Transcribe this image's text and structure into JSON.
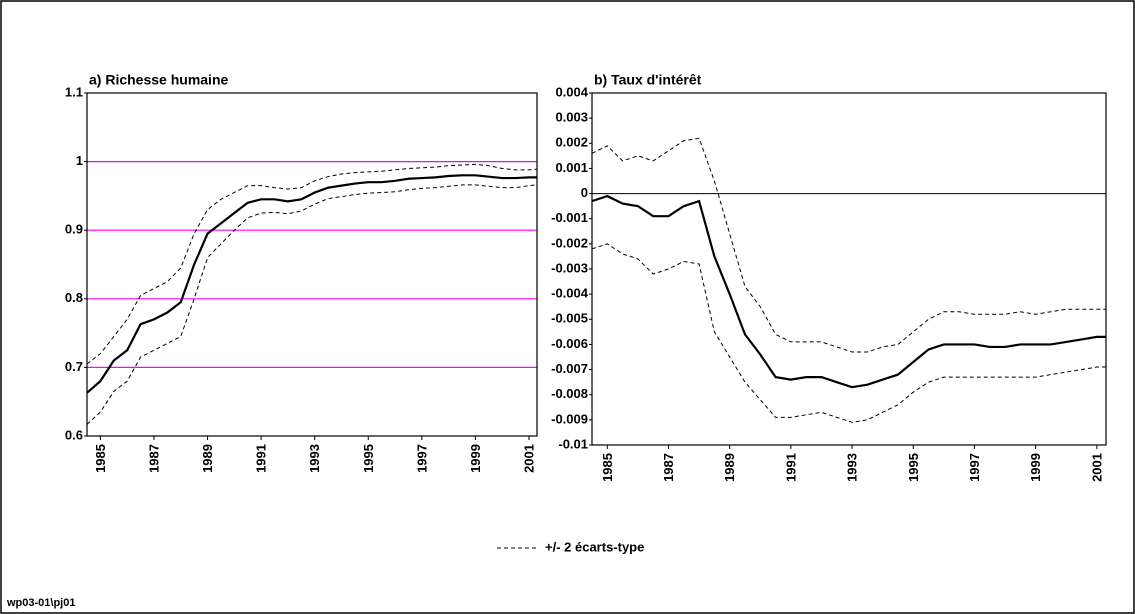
{
  "chart_data": [
    {
      "type": "line",
      "title": "a) Richesse humaine",
      "x": [
        1984.5,
        1985,
        1985.5,
        1986,
        1986.5,
        1987,
        1987.5,
        1988,
        1988.5,
        1989,
        1989.5,
        1990,
        1990.5,
        1991,
        1991.5,
        1992,
        1992.5,
        1993,
        1993.5,
        1994,
        1994.5,
        1995,
        1995.5,
        1996,
        1996.5,
        1997,
        1997.5,
        1998,
        1998.5,
        1999,
        1999.5,
        2000,
        2000.5,
        2001,
        2001.3
      ],
      "xlim": [
        1984.5,
        2001.3
      ],
      "xticks": [
        1985,
        1987,
        1989,
        1991,
        1993,
        1995,
        1997,
        1999,
        2001
      ],
      "ylim": [
        0.6,
        1.1
      ],
      "yticks": [
        0.6,
        0.7,
        0.8,
        0.9,
        1,
        1.1
      ],
      "grid": true,
      "grid_color": "#ff00ff",
      "series": [
        {
          "color": "#000000",
          "dash": "solid",
          "values": [
            0.663,
            0.68,
            0.71,
            0.725,
            0.763,
            0.77,
            0.78,
            0.795,
            0.85,
            0.895,
            0.91,
            0.925,
            0.94,
            0.945,
            0.945,
            0.942,
            0.945,
            0.955,
            0.962,
            0.965,
            0.968,
            0.97,
            0.97,
            0.972,
            0.975,
            0.976,
            0.977,
            0.979,
            0.98,
            0.98,
            0.978,
            0.976,
            0.976,
            0.977,
            0.977
          ]
        },
        {
          "name": "+/- 2 écarts-type",
          "color": "#000000",
          "dash": "dashed",
          "values": [
            0.705,
            0.72,
            0.745,
            0.77,
            0.805,
            0.815,
            0.825,
            0.845,
            0.895,
            0.93,
            0.945,
            0.955,
            0.965,
            0.965,
            0.962,
            0.96,
            0.962,
            0.972,
            0.978,
            0.982,
            0.984,
            0.985,
            0.986,
            0.988,
            0.99,
            0.991,
            0.992,
            0.994,
            0.995,
            0.996,
            0.994,
            0.99,
            0.988,
            0.988,
            0.989
          ]
        },
        {
          "color": "#000000",
          "dash": "dashed",
          "values": [
            0.617,
            0.635,
            0.665,
            0.68,
            0.715,
            0.725,
            0.735,
            0.745,
            0.8,
            0.86,
            0.88,
            0.9,
            0.918,
            0.925,
            0.926,
            0.924,
            0.928,
            0.938,
            0.946,
            0.949,
            0.952,
            0.954,
            0.955,
            0.956,
            0.959,
            0.961,
            0.962,
            0.964,
            0.966,
            0.966,
            0.964,
            0.962,
            0.962,
            0.965,
            0.966
          ]
        }
      ]
    },
    {
      "type": "line",
      "title": "b) Taux d'intérêt",
      "x": [
        1984.5,
        1985,
        1985.5,
        1986,
        1986.5,
        1987,
        1987.5,
        1988,
        1988.5,
        1989,
        1989.5,
        1990,
        1990.5,
        1991,
        1991.5,
        1992,
        1992.5,
        1993,
        1993.5,
        1994,
        1994.5,
        1995,
        1995.5,
        1996,
        1996.5,
        1997,
        1997.5,
        1998,
        1998.5,
        1999,
        1999.5,
        2000,
        2000.5,
        2001,
        2001.3
      ],
      "xlim": [
        1984.5,
        2001.3
      ],
      "xticks": [
        1985,
        1987,
        1989,
        1991,
        1993,
        1995,
        1997,
        1999,
        2001
      ],
      "ylim": [
        -0.01,
        0.004
      ],
      "yticks": [
        -0.01,
        -0.009,
        -0.008,
        -0.007,
        -0.006,
        -0.005,
        -0.004,
        -0.003,
        -0.002,
        -0.001,
        0,
        0.001,
        0.002,
        0.003,
        0.004
      ],
      "zero_line": true,
      "series": [
        {
          "color": "#000000",
          "dash": "solid",
          "values": [
            -0.0003,
            -0.0001,
            -0.0004,
            -0.0005,
            -0.0009,
            -0.0009,
            -0.0005,
            -0.0003,
            -0.0025,
            -0.004,
            -0.0056,
            -0.0064,
            -0.0073,
            -0.0074,
            -0.0073,
            -0.0073,
            -0.0075,
            -0.0077,
            -0.0076,
            -0.0074,
            -0.0072,
            -0.0067,
            -0.0062,
            -0.006,
            -0.006,
            -0.006,
            -0.0061,
            -0.0061,
            -0.006,
            -0.006,
            -0.006,
            -0.0059,
            -0.0058,
            -0.0057,
            -0.0057
          ]
        },
        {
          "color": "#000000",
          "dash": "dashed",
          "values": [
            0.0016,
            0.0019,
            0.0013,
            0.0015,
            0.0013,
            0.0017,
            0.0021,
            0.0022,
            0.0005,
            -0.0016,
            -0.0037,
            -0.0045,
            -0.0056,
            -0.0059,
            -0.0059,
            -0.0059,
            -0.0061,
            -0.0063,
            -0.0063,
            -0.0061,
            -0.006,
            -0.0055,
            -0.005,
            -0.0047,
            -0.0047,
            -0.0048,
            -0.0048,
            -0.0048,
            -0.0047,
            -0.0048,
            -0.0047,
            -0.0046,
            -0.0046,
            -0.0046,
            -0.0046
          ]
        },
        {
          "color": "#000000",
          "dash": "dashed",
          "values": [
            -0.0022,
            -0.002,
            -0.0024,
            -0.0026,
            -0.0032,
            -0.003,
            -0.0027,
            -0.0028,
            -0.0055,
            -0.0065,
            -0.0075,
            -0.0082,
            -0.0089,
            -0.0089,
            -0.0088,
            -0.0087,
            -0.0089,
            -0.0091,
            -0.009,
            -0.0087,
            -0.0084,
            -0.0079,
            -0.0075,
            -0.0073,
            -0.0073,
            -0.0073,
            -0.0073,
            -0.0073,
            -0.0073,
            -0.0073,
            -0.0072,
            -0.0071,
            -0.007,
            -0.0069,
            -0.0069
          ]
        }
      ]
    }
  ],
  "footer": "wp03-01\\pj01"
}
